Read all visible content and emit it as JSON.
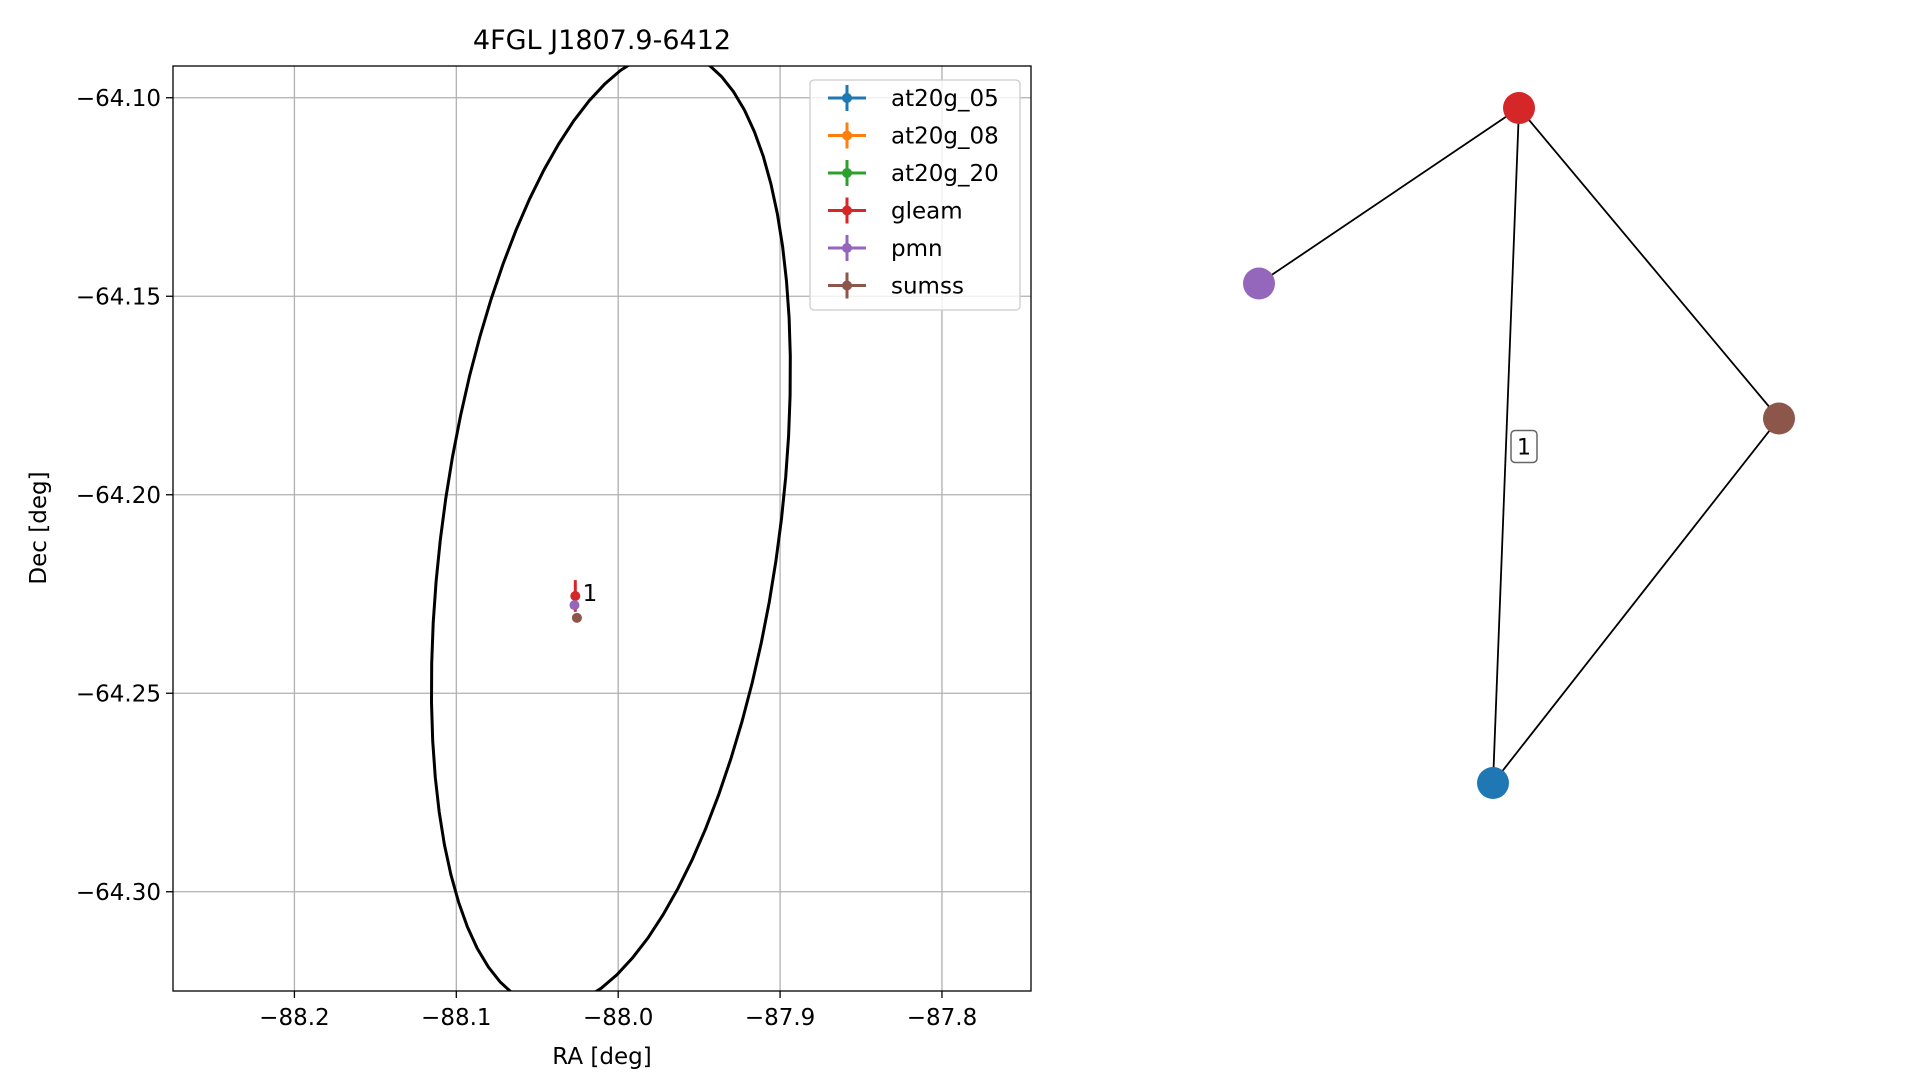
{
  "chart_data": [
    {
      "type": "scatter",
      "title": "4FGL J1807.9-6412",
      "xlabel": "RA [deg]",
      "ylabel": "Dec [deg]",
      "xlim": [
        -88.275,
        -87.745
      ],
      "ylim": [
        -64.325,
        -64.092
      ],
      "xticks": [
        -88.2,
        -88.1,
        -88.0,
        -87.9,
        -87.8
      ],
      "xtick_labels": [
        "−88.2",
        "−88.1",
        "−88.0",
        "−87.9",
        "−87.8"
      ],
      "yticks": [
        -64.1,
        -64.15,
        -64.2,
        -64.25,
        -64.3
      ],
      "ytick_labels": [
        "−64.10",
        "−64.15",
        "−64.20",
        "−64.25",
        "−64.30"
      ],
      "grid": true,
      "legend_position": "top-right",
      "ellipse": {
        "center": [
          -88.0045,
          -64.2087
        ],
        "semi_axes_deg": [
          0.134,
          0.094
        ],
        "angle_deg": 52,
        "color": "#000000"
      },
      "series": [
        {
          "name": "at20g_05",
          "color": "#1f77b4",
          "points": []
        },
        {
          "name": "at20g_08",
          "color": "#ff7f0e",
          "points": []
        },
        {
          "name": "at20g_20",
          "color": "#2ca02c",
          "points": []
        },
        {
          "name": "gleam",
          "color": "#d62728",
          "points": [
            {
              "x": -88.0265,
              "y": -64.2255,
              "yerr": 0.004
            }
          ]
        },
        {
          "name": "pmn",
          "color": "#9467bd",
          "points": [
            {
              "x": -88.027,
              "y": -64.2278
            }
          ]
        },
        {
          "name": "sumss",
          "color": "#8c564b",
          "points": [
            {
              "x": -88.0255,
              "y": -64.231
            }
          ]
        }
      ],
      "annotations": [
        {
          "text": "1",
          "x": -88.022,
          "y": -64.2245
        }
      ]
    },
    {
      "type": "network",
      "nodes": [
        {
          "id": "gleam",
          "color": "#d62728",
          "pos": [
            0.5,
            1.0
          ]
        },
        {
          "id": "pmn",
          "color": "#9467bd",
          "pos": [
            0.0,
            0.74
          ]
        },
        {
          "id": "sumss",
          "color": "#8c564b",
          "pos": [
            1.0,
            0.54
          ]
        },
        {
          "id": "at20g",
          "color": "#1f77b4",
          "pos": [
            0.45,
            0.0
          ]
        }
      ],
      "edges": [
        {
          "from": "gleam",
          "to": "pmn",
          "label": ""
        },
        {
          "from": "gleam",
          "to": "sumss",
          "label": ""
        },
        {
          "from": "gleam",
          "to": "at20g",
          "label": "1"
        },
        {
          "from": "sumss",
          "to": "at20g",
          "label": ""
        }
      ]
    }
  ]
}
